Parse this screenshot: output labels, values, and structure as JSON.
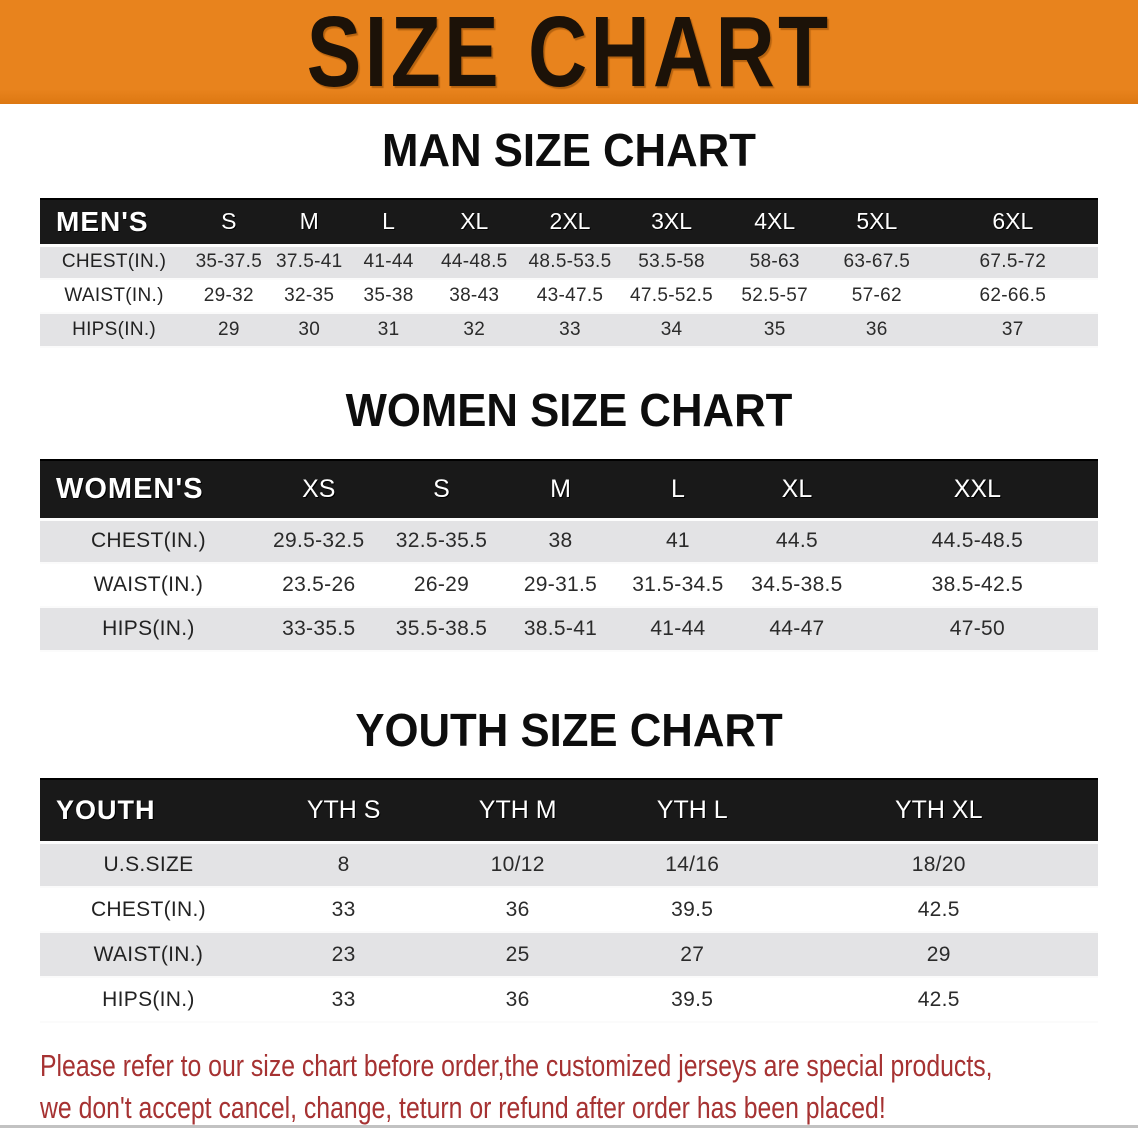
{
  "banner": {
    "title": "SIZE CHART",
    "bg_color": "#E8831D",
    "text_color": "#1C1208"
  },
  "sections": [
    {
      "title": "MAN SIZE CHART",
      "header_label": "MEN'S",
      "columns": [
        "S",
        "M",
        "L",
        "XL",
        "2XL",
        "3XL",
        "4XL",
        "5XL",
        "6XL"
      ],
      "rows": [
        {
          "label": "CHEST(IN.)",
          "values": [
            "35-37.5",
            "37.5-41",
            "41-44",
            "44-48.5",
            "48.5-53.5",
            "53.5-58",
            "58-63",
            "63-67.5",
            "67.5-72"
          ]
        },
        {
          "label": "WAIST(IN.)",
          "values": [
            "29-32",
            "32-35",
            "35-38",
            "38-43",
            "43-47.5",
            "47.5-52.5",
            "52.5-57",
            "57-62",
            "62-66.5"
          ]
        },
        {
          "label": "HIPS(IN.)",
          "values": [
            "29",
            "30",
            "31",
            "32",
            "33",
            "34",
            "35",
            "36",
            "37"
          ]
        }
      ]
    },
    {
      "title": "WOMEN SIZE CHART",
      "header_label": "WOMEN'S",
      "columns": [
        "XS",
        "S",
        "M",
        "L",
        "XL",
        "XXL"
      ],
      "rows": [
        {
          "label": "CHEST(IN.)",
          "values": [
            "29.5-32.5",
            "32.5-35.5",
            "38",
            "41",
            "44.5",
            "44.5-48.5"
          ]
        },
        {
          "label": "WAIST(IN.)",
          "values": [
            "23.5-26",
            "26-29",
            "29-31.5",
            "31.5-34.5",
            "34.5-38.5",
            "38.5-42.5"
          ]
        },
        {
          "label": "HIPS(IN.)",
          "values": [
            "33-35.5",
            "35.5-38.5",
            "38.5-41",
            "41-44",
            "44-47",
            "47-50"
          ]
        }
      ]
    },
    {
      "title": "YOUTH SIZE CHART",
      "header_label": "YOUTH",
      "columns": [
        "YTH S",
        "YTH M",
        "YTH L",
        "YTH XL"
      ],
      "rows": [
        {
          "label": "U.S.SIZE",
          "values": [
            "8",
            "10/12",
            "14/16",
            "18/20"
          ]
        },
        {
          "label": "CHEST(IN.)",
          "values": [
            "33",
            "36",
            "39.5",
            "42.5"
          ]
        },
        {
          "label": "WAIST(IN.)",
          "values": [
            "23",
            "25",
            "27",
            "29"
          ]
        },
        {
          "label": "HIPS(IN.)",
          "values": [
            "33",
            "36",
            "39.5",
            "42.5"
          ]
        }
      ]
    }
  ],
  "footnote": {
    "line1": "Please refer to our size chart before order,the customized jerseys are special products,",
    "line2": "we don't accept cancel, change, teturn or refund after order has been placed!",
    "color": "#A63232"
  }
}
